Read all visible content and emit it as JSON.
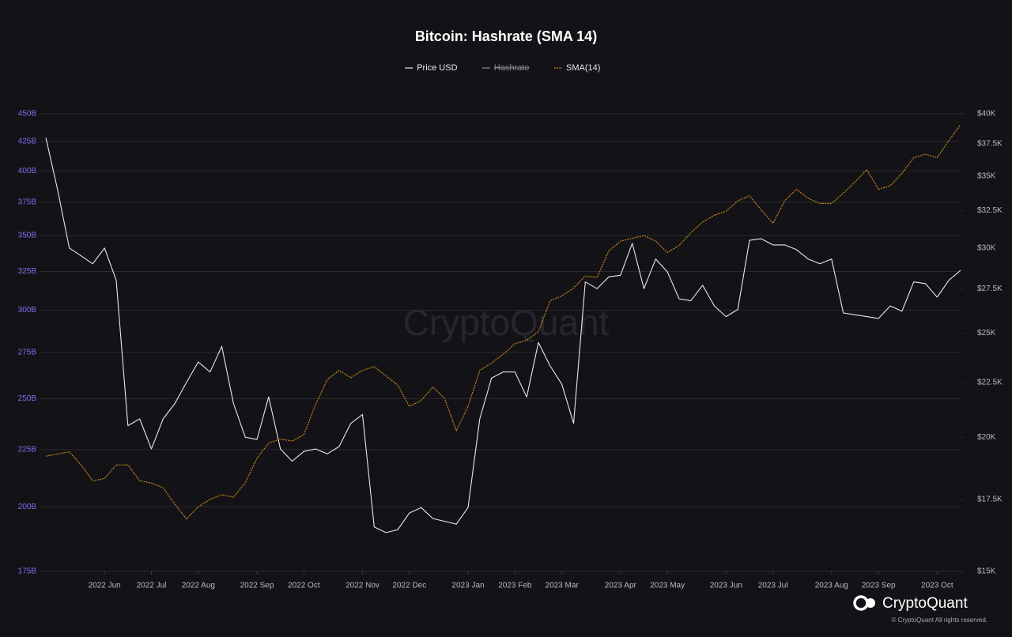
{
  "chart_data": {
    "type": "line",
    "title": "Bitcoin: Hashrate (SMA 14)",
    "watermark": "CryptoQuant",
    "footer": {
      "brand": "CryptoQuant",
      "copyright": "© CryptoQuant All rights reserved."
    },
    "categories": [
      null,
      null,
      null,
      null,
      null,
      "2022 Jun",
      null,
      null,
      null,
      "2022 Jul",
      null,
      null,
      null,
      "2022 Aug",
      null,
      null,
      null,
      null,
      "2022 Sep",
      null,
      null,
      null,
      "2022 Oct",
      null,
      null,
      null,
      null,
      "2022 Nov",
      null,
      null,
      null,
      "2022 Dec",
      null,
      null,
      null,
      null,
      "2023 Jan",
      null,
      null,
      null,
      "2023 Feb",
      null,
      null,
      null,
      "2023 Mar",
      null,
      null,
      null,
      null,
      "2023 Apr",
      null,
      null,
      null,
      "2023 May",
      null,
      null,
      null,
      null,
      "2023 Jun",
      null,
      null,
      null,
      "2023 Jul",
      null,
      null,
      null,
      null,
      "2023 Aug",
      null,
      null,
      null,
      "2023 Sep",
      null,
      null,
      null,
      null,
      "2023 Oct",
      null,
      null
    ],
    "series": [
      {
        "name": "Price USD",
        "color": "#e8e8ec",
        "axis": "y2",
        "line_style": "solid",
        "visible": true,
        "values": [
          38000,
          34000,
          30000,
          29500,
          29000,
          30000,
          28000,
          20500,
          20800,
          19500,
          20800,
          21500,
          22500,
          23500,
          23000,
          24300,
          21500,
          20000,
          19900,
          21800,
          19500,
          19000,
          19400,
          19500,
          19300,
          19600,
          20600,
          21000,
          16500,
          16300,
          16400,
          17000,
          17200,
          16800,
          16700,
          16600,
          17200,
          20800,
          22700,
          23000,
          23000,
          21800,
          24500,
          23300,
          22400,
          20600,
          27900,
          27500,
          28200,
          28300,
          30300,
          27500,
          29300,
          28500,
          26900,
          26800,
          27700,
          26500,
          25900,
          26300,
          30500,
          30600,
          30200,
          30200,
          29900,
          29300,
          29000,
          29300,
          26100,
          26000,
          25900,
          25800,
          26500,
          26200,
          27900,
          27800,
          27000,
          28000,
          28600
        ]
      },
      {
        "name": "Hashrate",
        "color": "#e8e8ec",
        "axis": "y",
        "visible": false
      },
      {
        "name": "SMA(14)",
        "color": "#c8861a",
        "axis": "y",
        "line_style": "dotted",
        "visible": true,
        "values": [
          222,
          223,
          224,
          218,
          211,
          212,
          218,
          218,
          211,
          210,
          208,
          201,
          195,
          200,
          203,
          205,
          204,
          210,
          221,
          228,
          230,
          229,
          232,
          247,
          260,
          265,
          261,
          265,
          267,
          262,
          257,
          246,
          249,
          256,
          250,
          234,
          246,
          265,
          269,
          274,
          280,
          282,
          287,
          306,
          309,
          314,
          322,
          321,
          339,
          346,
          348,
          350,
          346,
          338,
          343,
          352,
          360,
          365,
          368,
          376,
          380,
          369,
          359,
          376,
          385,
          378,
          374,
          374,
          382,
          391,
          401,
          385,
          388,
          398,
          411,
          414,
          411,
          426,
          440
        ]
      }
    ],
    "ylim": [
      175000000000,
      450000000000
    ],
    "ylog": true,
    "ytick_color": "#7a6ff0",
    "yticks": [
      {
        "value": 175000000000,
        "label": "175B"
      },
      {
        "value": 200000000000,
        "label": "200B"
      },
      {
        "value": 225000000000,
        "label": "225B"
      },
      {
        "value": 250000000000,
        "label": "250B"
      },
      {
        "value": 275000000000,
        "label": "275B"
      },
      {
        "value": 300000000000,
        "label": "300B"
      },
      {
        "value": 325000000000,
        "label": "325B"
      },
      {
        "value": 350000000000,
        "label": "350B"
      },
      {
        "value": 375000000000,
        "label": "375B"
      },
      {
        "value": 400000000000,
        "label": "400B"
      },
      {
        "value": 425000000000,
        "label": "425B"
      },
      {
        "value": 450000000000,
        "label": "450B"
      }
    ],
    "value_unit": 1000000000,
    "y2lim": [
      15000,
      40000
    ],
    "y2log": true,
    "y2ticks": [
      {
        "value": 15000,
        "label": "$15K"
      },
      {
        "value": 17500,
        "label": "$17.5K"
      },
      {
        "value": 20000,
        "label": "$20K"
      },
      {
        "value": 22500,
        "label": "$22.5K"
      },
      {
        "value": 25000,
        "label": "$25K"
      },
      {
        "value": 27500,
        "label": "$27.5K"
      },
      {
        "value": 30000,
        "label": "$30K"
      },
      {
        "value": 32500,
        "label": "$32.5K"
      },
      {
        "value": 35000,
        "label": "$35K"
      },
      {
        "value": 37500,
        "label": "$37.5K"
      },
      {
        "value": 40000,
        "label": "$40K"
      }
    ],
    "grid": true
  }
}
